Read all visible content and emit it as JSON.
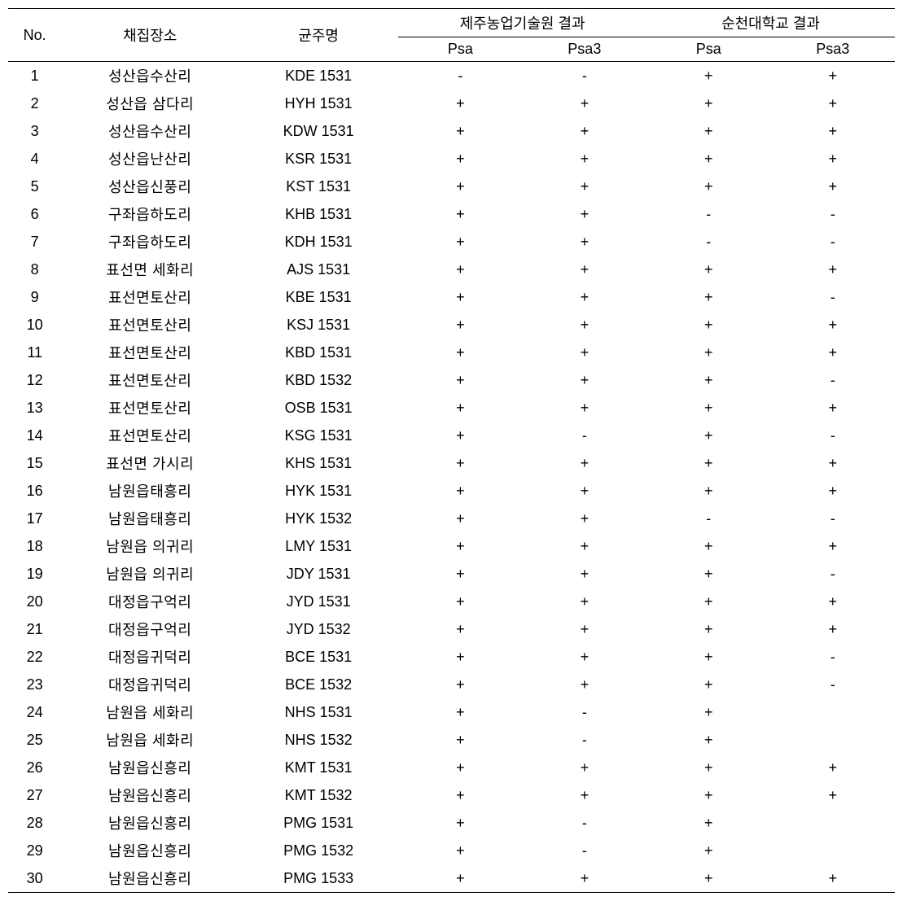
{
  "table": {
    "headers": {
      "no": "No.",
      "place": "채집장소",
      "strain": "균주명",
      "group1": "제주농업기술원 결과",
      "group2": "순천대학교 결과",
      "psa": "Psa",
      "psa3": "Psa3"
    },
    "rows": [
      {
        "no": "1",
        "place": "성산읍수산리",
        "strain": "KDE 1531",
        "j_psa": "-",
        "j_psa3": "-",
        "s_psa": "+",
        "s_psa3": "+"
      },
      {
        "no": "2",
        "place": "성산읍 삼다리",
        "strain": "HYH 1531",
        "j_psa": "+",
        "j_psa3": "+",
        "s_psa": "+",
        "s_psa3": "+"
      },
      {
        "no": "3",
        "place": "성산읍수산리",
        "strain": "KDW 1531",
        "j_psa": "+",
        "j_psa3": "+",
        "s_psa": "+",
        "s_psa3": "+"
      },
      {
        "no": "4",
        "place": "성산읍난산리",
        "strain": "KSR 1531",
        "j_psa": "+",
        "j_psa3": "+",
        "s_psa": "+",
        "s_psa3": "+"
      },
      {
        "no": "5",
        "place": "성산읍신풍리",
        "strain": "KST 1531",
        "j_psa": "+",
        "j_psa3": "+",
        "s_psa": "+",
        "s_psa3": "+"
      },
      {
        "no": "6",
        "place": "구좌읍하도리",
        "strain": "KHB 1531",
        "j_psa": "+",
        "j_psa3": "+",
        "s_psa": "-",
        "s_psa3": "-"
      },
      {
        "no": "7",
        "place": "구좌읍하도리",
        "strain": "KDH 1531",
        "j_psa": "+",
        "j_psa3": "+",
        "s_psa": "-",
        "s_psa3": "-"
      },
      {
        "no": "8",
        "place": "표선면 세화리",
        "strain": "AJS 1531",
        "j_psa": "+",
        "j_psa3": "+",
        "s_psa": "+",
        "s_psa3": "+"
      },
      {
        "no": "9",
        "place": "표선면토산리",
        "strain": "KBE 1531",
        "j_psa": "+",
        "j_psa3": "+",
        "s_psa": "+",
        "s_psa3": "-"
      },
      {
        "no": "10",
        "place": "표선면토산리",
        "strain": "KSJ 1531",
        "j_psa": "+",
        "j_psa3": "+",
        "s_psa": "+",
        "s_psa3": "+"
      },
      {
        "no": "11",
        "place": "표선면토산리",
        "strain": "KBD 1531",
        "j_psa": "+",
        "j_psa3": "+",
        "s_psa": "+",
        "s_psa3": "+"
      },
      {
        "no": "12",
        "place": "표선면토산리",
        "strain": "KBD 1532",
        "j_psa": "+",
        "j_psa3": "+",
        "s_psa": "+",
        "s_psa3": "-"
      },
      {
        "no": "13",
        "place": "표선면토산리",
        "strain": "OSB 1531",
        "j_psa": "+",
        "j_psa3": "+",
        "s_psa": "+",
        "s_psa3": "+"
      },
      {
        "no": "14",
        "place": "표선면토산리",
        "strain": "KSG 1531",
        "j_psa": "+",
        "j_psa3": "-",
        "s_psa": "+",
        "s_psa3": "-"
      },
      {
        "no": "15",
        "place": "표선면 가시리",
        "strain": "KHS 1531",
        "j_psa": "+",
        "j_psa3": "+",
        "s_psa": "+",
        "s_psa3": "+"
      },
      {
        "no": "16",
        "place": "남원읍태흥리",
        "strain": "HYK 1531",
        "j_psa": "+",
        "j_psa3": "+",
        "s_psa": "+",
        "s_psa3": "+"
      },
      {
        "no": "17",
        "place": "남원읍태흥리",
        "strain": "HYK 1532",
        "j_psa": "+",
        "j_psa3": "+",
        "s_psa": "-",
        "s_psa3": "-"
      },
      {
        "no": "18",
        "place": "남원읍 의귀리",
        "strain": "LMY 1531",
        "j_psa": "+",
        "j_psa3": "+",
        "s_psa": "+",
        "s_psa3": "+"
      },
      {
        "no": "19",
        "place": "남원읍 의귀리",
        "strain": "JDY 1531",
        "j_psa": "+",
        "j_psa3": "+",
        "s_psa": "+",
        "s_psa3": "-"
      },
      {
        "no": "20",
        "place": "대정읍구억리",
        "strain": "JYD 1531",
        "j_psa": "+",
        "j_psa3": "+",
        "s_psa": "+",
        "s_psa3": "+"
      },
      {
        "no": "21",
        "place": "대정읍구억리",
        "strain": "JYD 1532",
        "j_psa": "+",
        "j_psa3": "+",
        "s_psa": "+",
        "s_psa3": "+"
      },
      {
        "no": "22",
        "place": "대정읍귀덕리",
        "strain": "BCE 1531",
        "j_psa": "+",
        "j_psa3": "+",
        "s_psa": "+",
        "s_psa3": "-"
      },
      {
        "no": "23",
        "place": "대정읍귀덕리",
        "strain": "BCE 1532",
        "j_psa": "+",
        "j_psa3": "+",
        "s_psa": "+",
        "s_psa3": "-"
      },
      {
        "no": "24",
        "place": "남원읍 세화리",
        "strain": "NHS 1531",
        "j_psa": "+",
        "j_psa3": "-",
        "s_psa": "+",
        "s_psa3": ""
      },
      {
        "no": "25",
        "place": "남원읍 세화리",
        "strain": "NHS 1532",
        "j_psa": "+",
        "j_psa3": "-",
        "s_psa": "+",
        "s_psa3": ""
      },
      {
        "no": "26",
        "place": "남원읍신흥리",
        "strain": "KMT 1531",
        "j_psa": "+",
        "j_psa3": "+",
        "s_psa": "+",
        "s_psa3": "+"
      },
      {
        "no": "27",
        "place": "남원읍신흥리",
        "strain": "KMT 1532",
        "j_psa": "+",
        "j_psa3": "+",
        "s_psa": "+",
        "s_psa3": "+"
      },
      {
        "no": "28",
        "place": "남원읍신흥리",
        "strain": "PMG 1531",
        "j_psa": "+",
        "j_psa3": "-",
        "s_psa": "+",
        "s_psa3": ""
      },
      {
        "no": "29",
        "place": "남원읍신흥리",
        "strain": "PMG 1532",
        "j_psa": "+",
        "j_psa3": "-",
        "s_psa": "+",
        "s_psa3": ""
      },
      {
        "no": "30",
        "place": "남원읍신흥리",
        "strain": "PMG 1533",
        "j_psa": "+",
        "j_psa3": "+",
        "s_psa": "+",
        "s_psa3": "+"
      }
    ]
  },
  "styling": {
    "font_size": 18,
    "text_color": "#000000",
    "background_color": "#ffffff",
    "border_color": "#000000",
    "border_top_width": 1.5,
    "border_bottom_width": 1.5,
    "inner_border_width": 1
  }
}
